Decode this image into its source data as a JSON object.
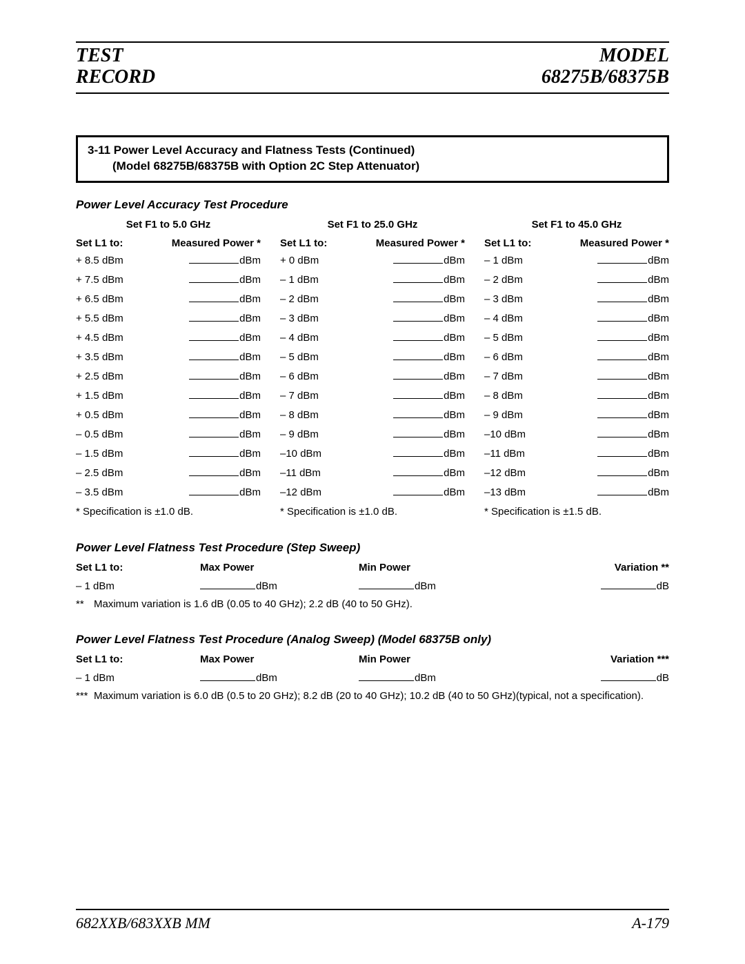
{
  "header": {
    "left_line1": "TEST",
    "left_line2": "RECORD",
    "right_line1": "MODEL",
    "right_line2": "68275B/68375B"
  },
  "title_box": {
    "line1": "3-11 Power Level Accuracy and Flatness Tests (Continued)",
    "line2": "(Model 68275B/68375B with Option 2C Step Attenuator)"
  },
  "accuracy": {
    "heading": "Power Level Accuracy Test Procedure",
    "col_set_label": "Set L1 to:",
    "col_meas_label": "Measured Power *",
    "unit": "dBm",
    "columns": [
      {
        "top": "Set F1 to 5.0 GHz",
        "rows": [
          "+ 8.5 dBm",
          "+ 7.5 dBm",
          "+ 6.5 dBm",
          "+ 5.5 dBm",
          "+ 4.5 dBm",
          "+ 3.5 dBm",
          "+ 2.5 dBm",
          "+ 1.5 dBm",
          "+ 0.5 dBm",
          "– 0.5 dBm",
          "– 1.5 dBm",
          "– 2.5 dBm",
          "– 3.5 dBm"
        ],
        "spec": "* Specification is ±1.0 dB."
      },
      {
        "top": "Set F1 to 25.0 GHz",
        "rows": [
          "+ 0 dBm",
          "– 1 dBm",
          "– 2 dBm",
          "– 3 dBm",
          "– 4 dBm",
          "– 5 dBm",
          "– 6 dBm",
          "– 7 dBm",
          "– 8 dBm",
          "– 9 dBm",
          "–10 dBm",
          "–11 dBm",
          "–12 dBm"
        ],
        "spec": "* Specification is ±1.0 dB."
      },
      {
        "top": "Set F1 to 45.0 GHz",
        "rows": [
          "– 1 dBm",
          "– 2 dBm",
          "– 3 dBm",
          "– 4 dBm",
          "– 5 dBm",
          "– 6 dBm",
          "– 7 dBm",
          "– 8 dBm",
          "– 9 dBm",
          "–10 dBm",
          "–11 dBm",
          "–12 dBm",
          "–13 dBm"
        ],
        "spec": "* Specification is ±1.5 dB."
      }
    ]
  },
  "flat_step": {
    "heading": "Power Level Flatness Test Procedure (Step Sweep)",
    "h_set": "Set L1 to:",
    "h_max": "Max Power",
    "h_min": "Min Power",
    "h_var": "Variation **",
    "row_set": "– 1 dBm",
    "unit_p": "dBm",
    "unit_v": "dB",
    "foot_mark": "**",
    "foot_text": "Maximum variation is 1.6 dB (0.05 to 40 GHz); 2.2 dB (40 to 50 GHz)."
  },
  "flat_analog": {
    "heading": "Power Level Flatness Test Procedure (Analog Sweep) (Model 68375B only)",
    "h_set": "Set L1 to:",
    "h_max": "Max Power",
    "h_min": "Min Power",
    "h_var": "Variation ***",
    "row_set": "– 1 dBm",
    "unit_p": "dBm",
    "unit_v": "dB",
    "foot_mark": "***",
    "foot_text": "Maximum variation is 6.0 dB (0.5 to 20 GHz); 8.2 dB (20 to 40 GHz); 10.2 dB (40 to 50 GHz)(typical, not a specification)."
  },
  "footer": {
    "left": "682XXB/683XXB MM",
    "right": "A-179"
  }
}
